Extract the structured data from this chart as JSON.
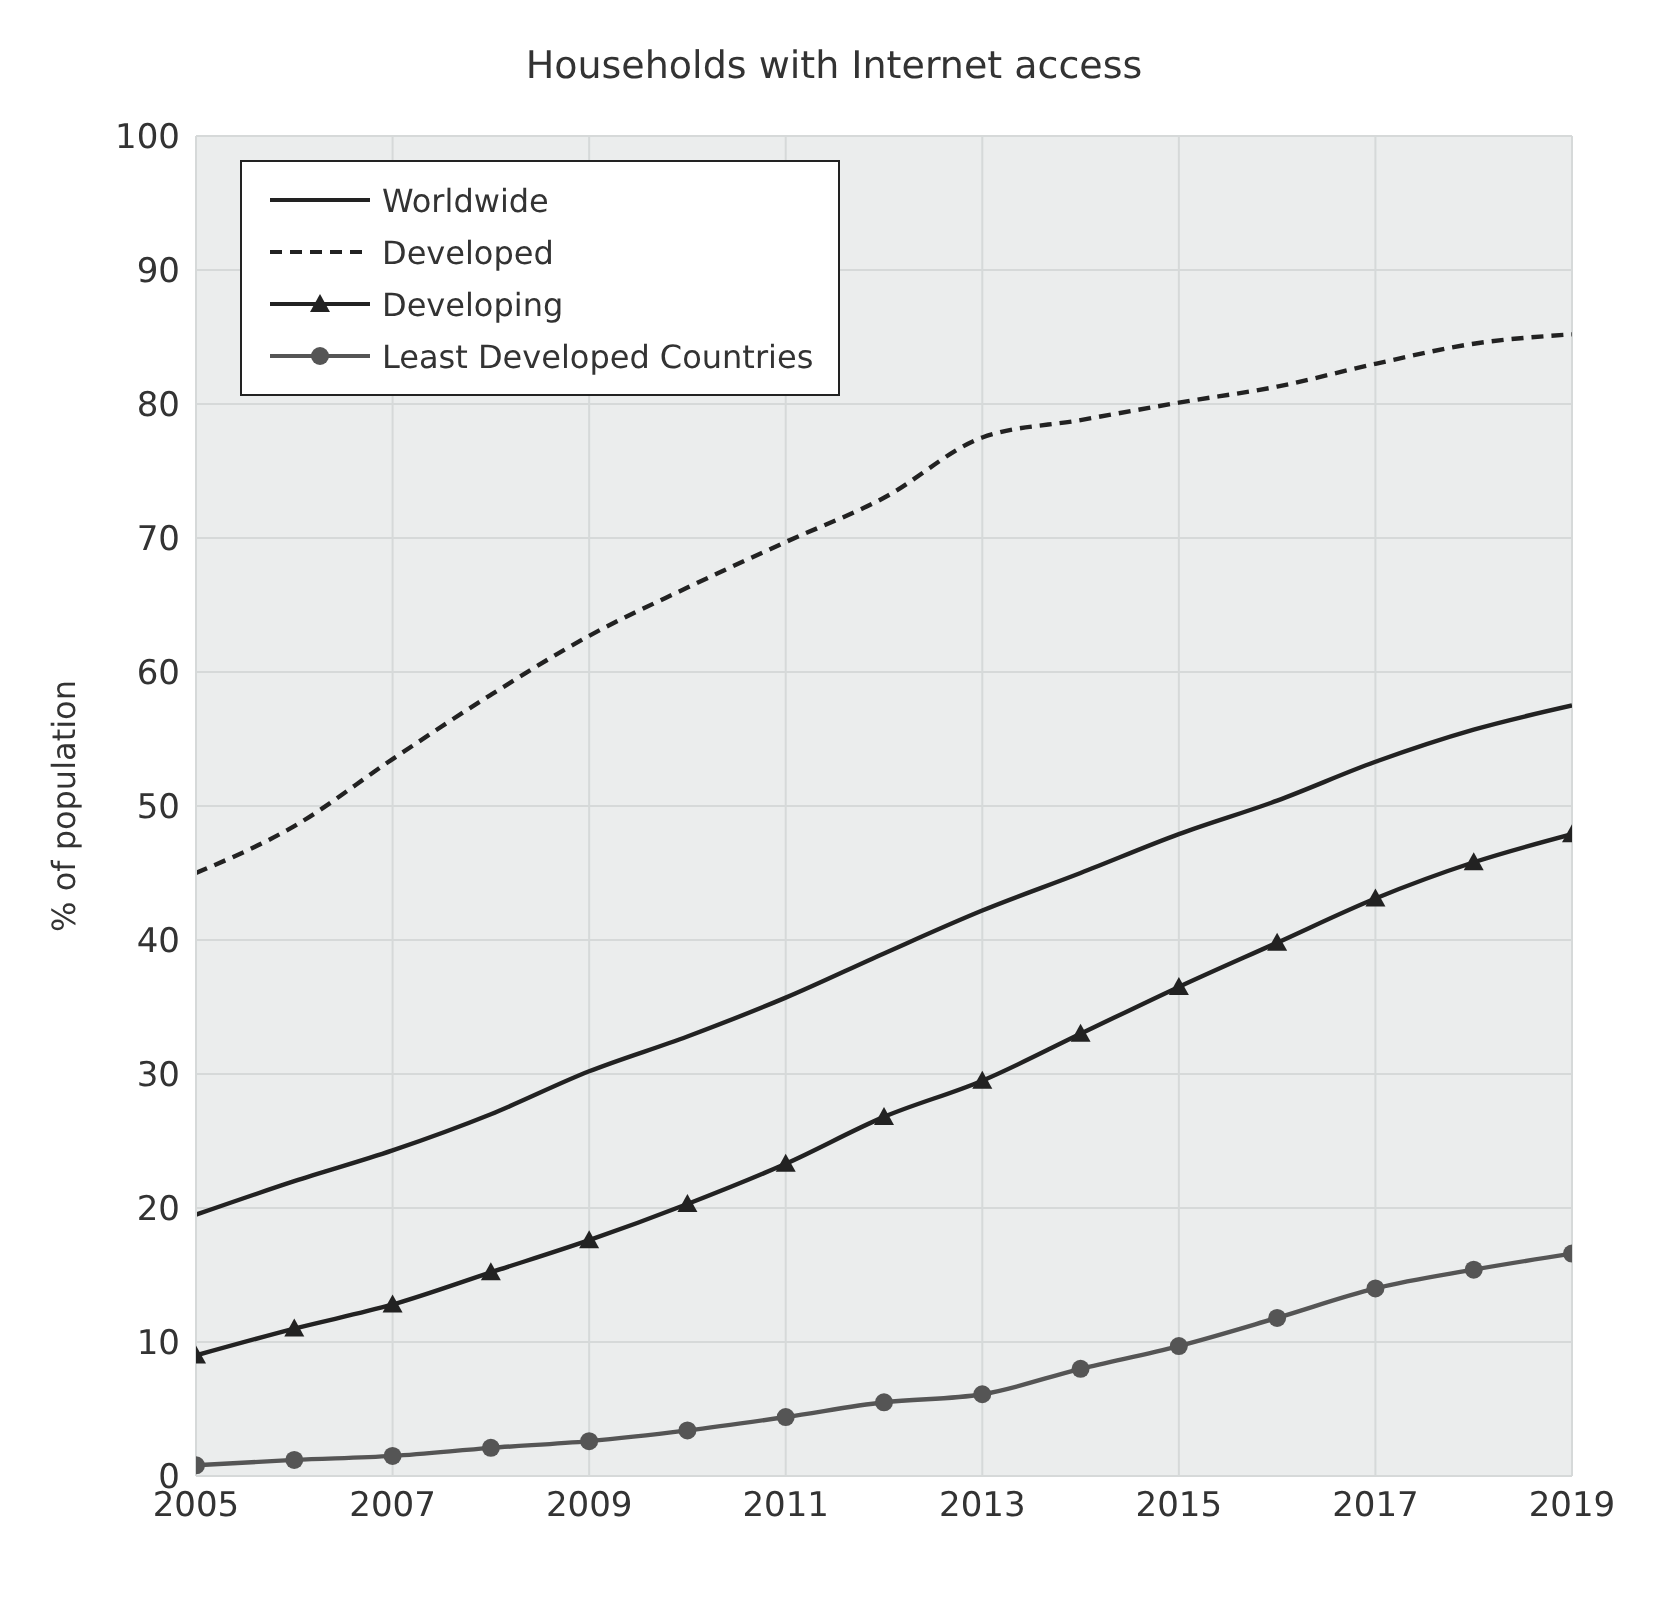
{
  "chart_data": {
    "type": "line",
    "title": "Households with Internet access",
    "ylabel": "% of population",
    "x": [
      2005,
      2006,
      2007,
      2008,
      2009,
      2010,
      2011,
      2012,
      2013,
      2014,
      2015,
      2016,
      2017,
      2018,
      2019
    ],
    "xlim": [
      2005,
      2019
    ],
    "xticks": [
      2005,
      2007,
      2009,
      2011,
      2013,
      2015,
      2017,
      2019
    ],
    "ylim": [
      0,
      100
    ],
    "yticks": [
      0,
      10,
      20,
      30,
      40,
      50,
      60,
      70,
      80,
      90,
      100
    ],
    "grid": true,
    "legend": "top left",
    "series": [
      {
        "name": "Worldwide",
        "color": "#222222",
        "line_style": "solid",
        "marker": "none",
        "values": [
          19.5,
          22,
          24.3,
          27,
          30.2,
          32.8,
          35.7,
          39,
          42.2,
          45,
          47.9,
          50.4,
          53.3,
          55.7,
          57.5
        ]
      },
      {
        "name": "Developed",
        "color": "#222222",
        "line_style": "dashed",
        "marker": "none",
        "values": [
          45,
          48.5,
          53.5,
          58.3,
          62.7,
          66.3,
          69.7,
          73,
          77.5,
          78.8,
          80.1,
          81.3,
          83,
          84.5,
          85.2
        ]
      },
      {
        "name": "Developing",
        "color": "#222222",
        "line_style": "solid",
        "marker": "triangle",
        "values": [
          9,
          11,
          12.8,
          15.2,
          17.6,
          20.3,
          23.3,
          26.8,
          29.5,
          33,
          36.5,
          39.8,
          43.1,
          45.8,
          47.9
        ]
      },
      {
        "name": "Least Developed Countries",
        "color": "#555555",
        "line_style": "solid",
        "marker": "circle",
        "values": [
          0.8,
          1.2,
          1.5,
          2.1,
          2.6,
          3.4,
          4.4,
          5.5,
          6.1,
          8,
          9.7,
          11.8,
          14,
          15.4,
          16.6
        ]
      }
    ]
  }
}
